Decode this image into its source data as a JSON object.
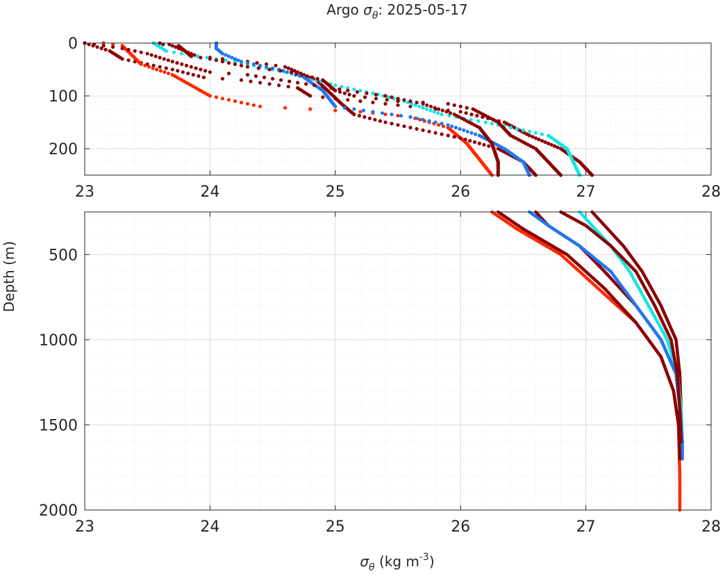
{
  "title": {
    "prefix": "Argo ",
    "symbol": "σ",
    "subscript": "θ",
    "suffix": ": 2025-05-17"
  },
  "xlabel": {
    "symbol": "σ",
    "subscript": "θ",
    "unit_pre": " (kg m",
    "unit_sup": "-3",
    "unit_post": ")"
  },
  "ylabel": "Depth (m)",
  "colors": {
    "darkred": "#8b0000",
    "red": "#ff2800",
    "blue": "#1e78f0",
    "cyan": "#14e6e6",
    "axis": "#262626",
    "grid": "#dcdcdc"
  },
  "chart_data": {
    "type": "scatter",
    "layout": "two stacked panels sharing the x-axis",
    "grid": true,
    "xlim": [
      23,
      28
    ],
    "xticks": [
      23,
      24,
      25,
      26,
      27,
      28
    ],
    "panels": [
      {
        "name": "upper",
        "ylim": [
          0,
          250
        ],
        "yreversed": true,
        "yticks": [
          0,
          100,
          200
        ],
        "marker": "dots"
      },
      {
        "name": "lower",
        "ylim": [
          250,
          2000
        ],
        "yreversed": true,
        "yticks": [
          500,
          1000,
          1500,
          2000
        ],
        "marker": "lines"
      }
    ],
    "series": [
      {
        "color": "darkred",
        "points": [
          [
            23.0,
            0
          ],
          [
            23.2,
            15
          ],
          [
            23.3,
            30
          ],
          [
            23.7,
            50
          ],
          [
            23.95,
            65
          ],
          [
            24.25,
            70
          ],
          [
            24.7,
            85
          ],
          [
            24.8,
            100
          ],
          [
            25.4,
            115
          ],
          [
            26.0,
            130
          ],
          [
            26.35,
            150
          ],
          [
            26.55,
            175
          ],
          [
            26.8,
            200
          ],
          [
            26.95,
            225
          ],
          [
            27.05,
            250
          ],
          [
            27.15,
            330
          ],
          [
            27.3,
            450
          ],
          [
            27.45,
            600
          ],
          [
            27.6,
            800
          ],
          [
            27.72,
            1000
          ],
          [
            27.75,
            1200
          ],
          [
            27.76,
            1400
          ],
          [
            27.77,
            1600
          ],
          [
            27.77,
            1700
          ]
        ]
      },
      {
        "color": "red",
        "points": [
          [
            23.15,
            0
          ],
          [
            23.3,
            5
          ],
          [
            23.45,
            40
          ],
          [
            23.7,
            60
          ],
          [
            23.85,
            80
          ],
          [
            24.0,
            100
          ],
          [
            24.4,
            120
          ],
          [
            25.2,
            130
          ],
          [
            25.6,
            140
          ],
          [
            25.9,
            160
          ],
          [
            26.05,
            190
          ],
          [
            26.15,
            220
          ],
          [
            26.25,
            250
          ],
          [
            26.45,
            350
          ],
          [
            26.8,
            500
          ],
          [
            27.1,
            700
          ],
          [
            27.4,
            900
          ],
          [
            27.6,
            1100
          ],
          [
            27.7,
            1300
          ],
          [
            27.74,
            1500
          ],
          [
            27.75,
            1800
          ],
          [
            27.75,
            2000
          ]
        ]
      },
      {
        "color": "darkred",
        "points": [
          [
            23.55,
            0
          ],
          [
            23.7,
            5
          ],
          [
            23.9,
            25
          ],
          [
            24.3,
            35
          ],
          [
            24.6,
            45
          ],
          [
            24.85,
            70
          ],
          [
            25.05,
            115
          ],
          [
            25.15,
            135
          ],
          [
            25.4,
            150
          ],
          [
            25.7,
            165
          ],
          [
            26.0,
            180
          ],
          [
            26.3,
            200
          ],
          [
            26.5,
            225
          ],
          [
            26.6,
            250
          ],
          [
            26.7,
            330
          ],
          [
            26.95,
            450
          ],
          [
            27.15,
            600
          ],
          [
            27.4,
            800
          ],
          [
            27.6,
            1000
          ],
          [
            27.72,
            1200
          ],
          [
            27.75,
            1400
          ],
          [
            27.76,
            1600
          ]
        ]
      },
      {
        "color": "cyan",
        "points": [
          [
            23.55,
            0
          ],
          [
            23.65,
            15
          ],
          [
            23.9,
            25
          ],
          [
            24.2,
            35
          ],
          [
            24.4,
            45
          ],
          [
            24.7,
            60
          ],
          [
            25.0,
            80
          ],
          [
            25.3,
            95
          ],
          [
            25.55,
            110
          ],
          [
            25.85,
            135
          ],
          [
            26.2,
            150
          ],
          [
            26.4,
            160
          ],
          [
            26.7,
            175
          ],
          [
            26.85,
            200
          ],
          [
            26.9,
            225
          ],
          [
            26.95,
            250
          ],
          [
            27.05,
            330
          ],
          [
            27.2,
            450
          ],
          [
            27.35,
            600
          ],
          [
            27.5,
            800
          ],
          [
            27.65,
            1000
          ],
          [
            27.73,
            1200
          ],
          [
            27.76,
            1400
          ],
          [
            27.77,
            1600
          ]
        ]
      },
      {
        "color": "blue",
        "points": [
          [
            24.05,
            0
          ],
          [
            24.05,
            10
          ],
          [
            24.1,
            20
          ],
          [
            24.25,
            35
          ],
          [
            24.55,
            50
          ],
          [
            24.75,
            65
          ],
          [
            24.9,
            90
          ],
          [
            25.0,
            120
          ],
          [
            25.3,
            130
          ],
          [
            25.6,
            140
          ],
          [
            25.9,
            155
          ],
          [
            26.15,
            175
          ],
          [
            26.35,
            200
          ],
          [
            26.5,
            225
          ],
          [
            26.55,
            250
          ],
          [
            26.7,
            330
          ],
          [
            26.95,
            450
          ],
          [
            27.2,
            600
          ],
          [
            27.4,
            800
          ],
          [
            27.6,
            1000
          ],
          [
            27.72,
            1200
          ],
          [
            27.75,
            1400
          ],
          [
            27.77,
            1600
          ],
          [
            27.77,
            1700
          ]
        ]
      },
      {
        "color": "darkred",
        "points": [
          [
            23.6,
            0
          ],
          [
            23.75,
            5
          ],
          [
            23.85,
            25
          ],
          [
            24.0,
            30
          ],
          [
            24.3,
            45
          ],
          [
            24.65,
            55
          ],
          [
            24.9,
            70
          ],
          [
            25.0,
            90
          ],
          [
            25.15,
            100
          ],
          [
            25.5,
            110
          ],
          [
            25.9,
            115
          ],
          [
            26.1,
            125
          ],
          [
            26.3,
            150
          ],
          [
            26.4,
            175
          ],
          [
            26.6,
            200
          ],
          [
            26.7,
            225
          ],
          [
            26.8,
            250
          ],
          [
            27.0,
            330
          ],
          [
            27.2,
            450
          ],
          [
            27.4,
            600
          ],
          [
            27.55,
            800
          ],
          [
            27.68,
            1000
          ],
          [
            27.73,
            1200
          ],
          [
            27.75,
            1400
          ],
          [
            27.76,
            1600
          ]
        ]
      },
      {
        "color": "darkred",
        "points": [
          [
            23.0,
            0
          ],
          [
            23.3,
            10
          ],
          [
            23.5,
            20
          ],
          [
            23.7,
            35
          ],
          [
            24.0,
            55
          ],
          [
            24.3,
            60
          ],
          [
            24.7,
            75
          ],
          [
            25.1,
            90
          ],
          [
            25.4,
            100
          ],
          [
            25.7,
            115
          ],
          [
            25.95,
            135
          ],
          [
            26.15,
            160
          ],
          [
            26.25,
            190
          ],
          [
            26.3,
            225
          ],
          [
            26.3,
            250
          ],
          [
            26.5,
            350
          ],
          [
            26.85,
            500
          ],
          [
            27.15,
            700
          ],
          [
            27.4,
            900
          ],
          [
            27.6,
            1100
          ],
          [
            27.7,
            1300
          ],
          [
            27.74,
            1500
          ],
          [
            27.75,
            1700
          ]
        ]
      }
    ]
  }
}
